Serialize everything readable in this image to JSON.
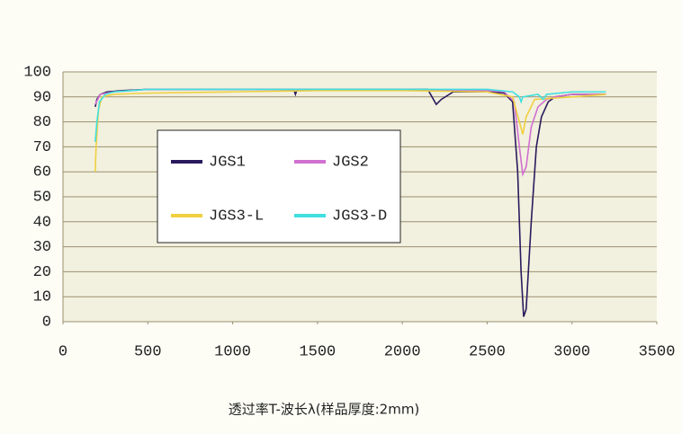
{
  "chart_data": {
    "type": "line",
    "xlabel": "透过率T-波长λ(样品厚度:2mm)",
    "xlim": [
      0,
      3500
    ],
    "xticks": [
      0,
      500,
      1000,
      1500,
      2000,
      2500,
      3000,
      3500
    ],
    "ylim": [
      0,
      100
    ],
    "yticks": [
      0,
      10,
      20,
      30,
      40,
      50,
      60,
      70,
      80,
      90,
      100
    ],
    "grid": true,
    "series": [
      {
        "name": "JGS1",
        "color": "#2a1a5e",
        "x": [
          190,
          200,
          220,
          260,
          350,
          500,
          1000,
          1360,
          1370,
          1380,
          1500,
          2000,
          2150,
          2200,
          2230,
          2300,
          2500,
          2600,
          2650,
          2680,
          2700,
          2715,
          2730,
          2760,
          2790,
          2820,
          2860,
          2900,
          3000,
          3200
        ],
        "values": [
          86,
          89,
          91,
          92,
          92.5,
          93,
          93,
          93,
          91,
          93,
          93,
          93,
          93,
          87,
          89,
          92,
          92,
          91.5,
          88,
          60,
          20,
          2,
          5,
          40,
          70,
          82,
          88,
          90,
          91,
          91
        ]
      },
      {
        "name": "JGS2",
        "color": "#d070d0",
        "x": [
          190,
          220,
          300,
          500,
          1000,
          1500,
          2000,
          2500,
          2600,
          2660,
          2690,
          2710,
          2730,
          2760,
          2800,
          2850,
          2900,
          3000,
          3200
        ],
        "values": [
          87,
          91,
          92,
          93,
          93,
          93,
          93,
          92.5,
          92,
          88,
          70,
          59,
          62,
          78,
          86,
          89,
          90,
          91,
          91
        ]
      },
      {
        "name": "JGS3-L",
        "color": "#f0d040",
        "x": [
          190,
          195,
          210,
          230,
          300,
          500,
          1000,
          1500,
          2000,
          2500,
          2650,
          2690,
          2710,
          2730,
          2780,
          3000,
          3200
        ],
        "values": [
          60,
          70,
          85,
          90,
          91,
          91.5,
          92,
          92.5,
          92.5,
          92,
          90,
          80,
          75,
          82,
          89,
          90,
          91
        ]
      },
      {
        "name": "JGS3-D",
        "color": "#40e0e0",
        "x": [
          190,
          200,
          215,
          250,
          300,
          500,
          1000,
          1500,
          2000,
          2500,
          2650,
          2690,
          2700,
          2710,
          2800,
          2830,
          2850,
          3000,
          3200
        ],
        "values": [
          72,
          80,
          88,
          91,
          92,
          93,
          93,
          93,
          93,
          93,
          92,
          90,
          88,
          90,
          91,
          89,
          91,
          92,
          92
        ]
      }
    ]
  }
}
